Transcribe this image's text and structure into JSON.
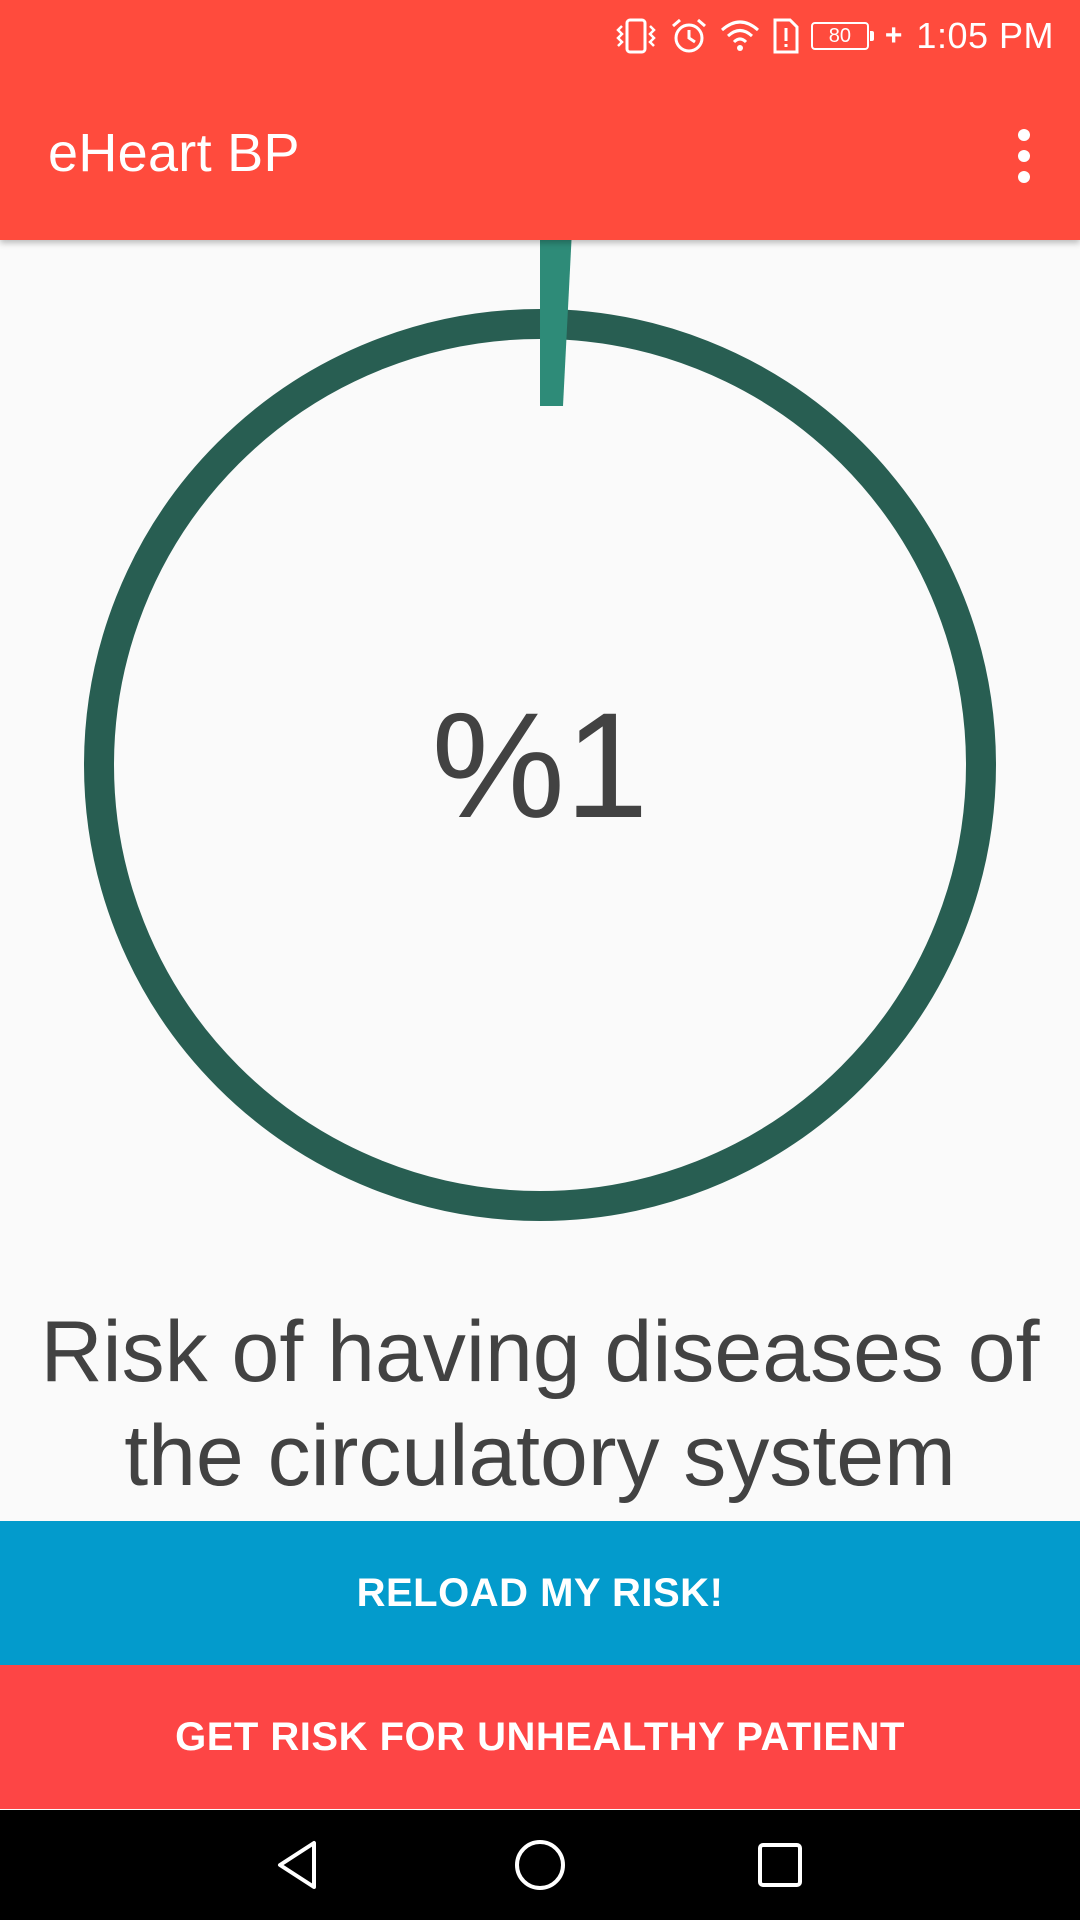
{
  "status_bar": {
    "battery_level": "80",
    "time": "1:05 PM",
    "icons": [
      "vibrate-icon",
      "alarm-icon",
      "wifi-icon",
      "sim-alert-icon",
      "battery-icon",
      "charging-icon"
    ]
  },
  "app_bar": {
    "title": "eHeart BP",
    "menu_icon": "more-vert-icon"
  },
  "gauge": {
    "value_text": "%1",
    "percent": 1,
    "track_color": "#285e52",
    "progress_color": "#2e8b78"
  },
  "caption": "Risk of having diseases of the circulatory system",
  "buttons": {
    "reload": "RELOAD MY RISK!",
    "unhealthy": "GET RISK FOR UNHEALTHY PATIENT"
  },
  "colors": {
    "app_bar": "#ff4b3d",
    "reload_button": "#039bcc",
    "unhealthy_button": "#fd4545",
    "text": "#424242"
  },
  "nav_bar": {
    "back": "back-icon",
    "home": "home-icon",
    "recents": "recents-icon"
  }
}
